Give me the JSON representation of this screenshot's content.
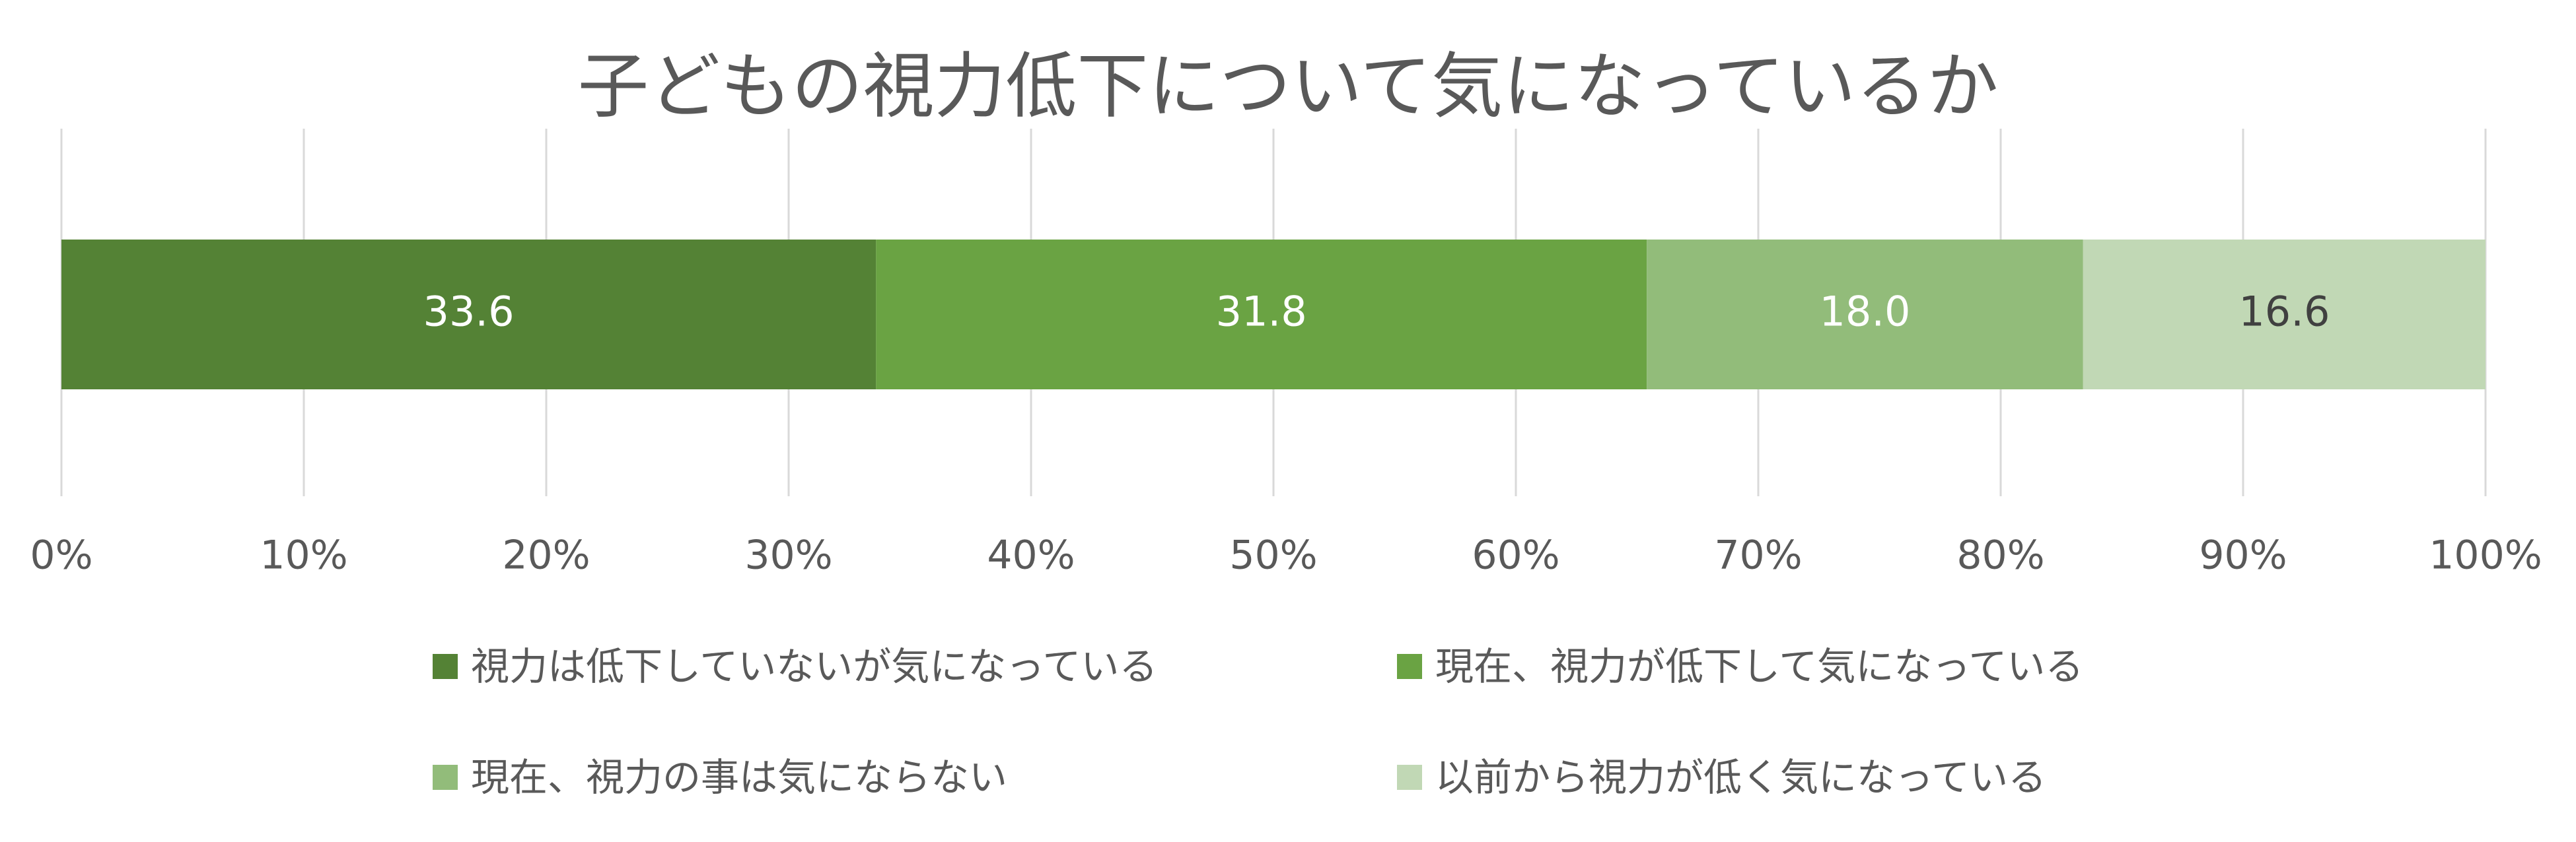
{
  "chart_data": {
    "type": "bar",
    "orientation": "horizontal",
    "stacked": true,
    "percent_stacked": true,
    "title": "子どもの視力低下について気になっているか",
    "xlim": [
      0,
      100
    ],
    "x_ticks": [
      "0%",
      "10%",
      "20%",
      "30%",
      "40%",
      "50%",
      "60%",
      "70%",
      "80%",
      "90%",
      "100%"
    ],
    "grid": true,
    "legend_position": "bottom",
    "series": [
      {
        "name": "視力は低下していないが気になっている",
        "value": 33.6,
        "label": "33.6",
        "color": "#548235",
        "label_color": "#ffffff"
      },
      {
        "name": "現在、視力が低下して気になっている",
        "value": 31.8,
        "label": "31.8",
        "color": "#6aa343",
        "label_color": "#ffffff"
      },
      {
        "name": "現在、視力の事は気にならない",
        "value": 18.0,
        "label": "18.0",
        "color": "#92bc7a",
        "label_color": "#ffffff"
      },
      {
        "name": "以前から視力が低く気になっている",
        "value": 16.6,
        "label": "16.6",
        "color": "#c1d8b5",
        "label_color": "#404040"
      }
    ]
  }
}
